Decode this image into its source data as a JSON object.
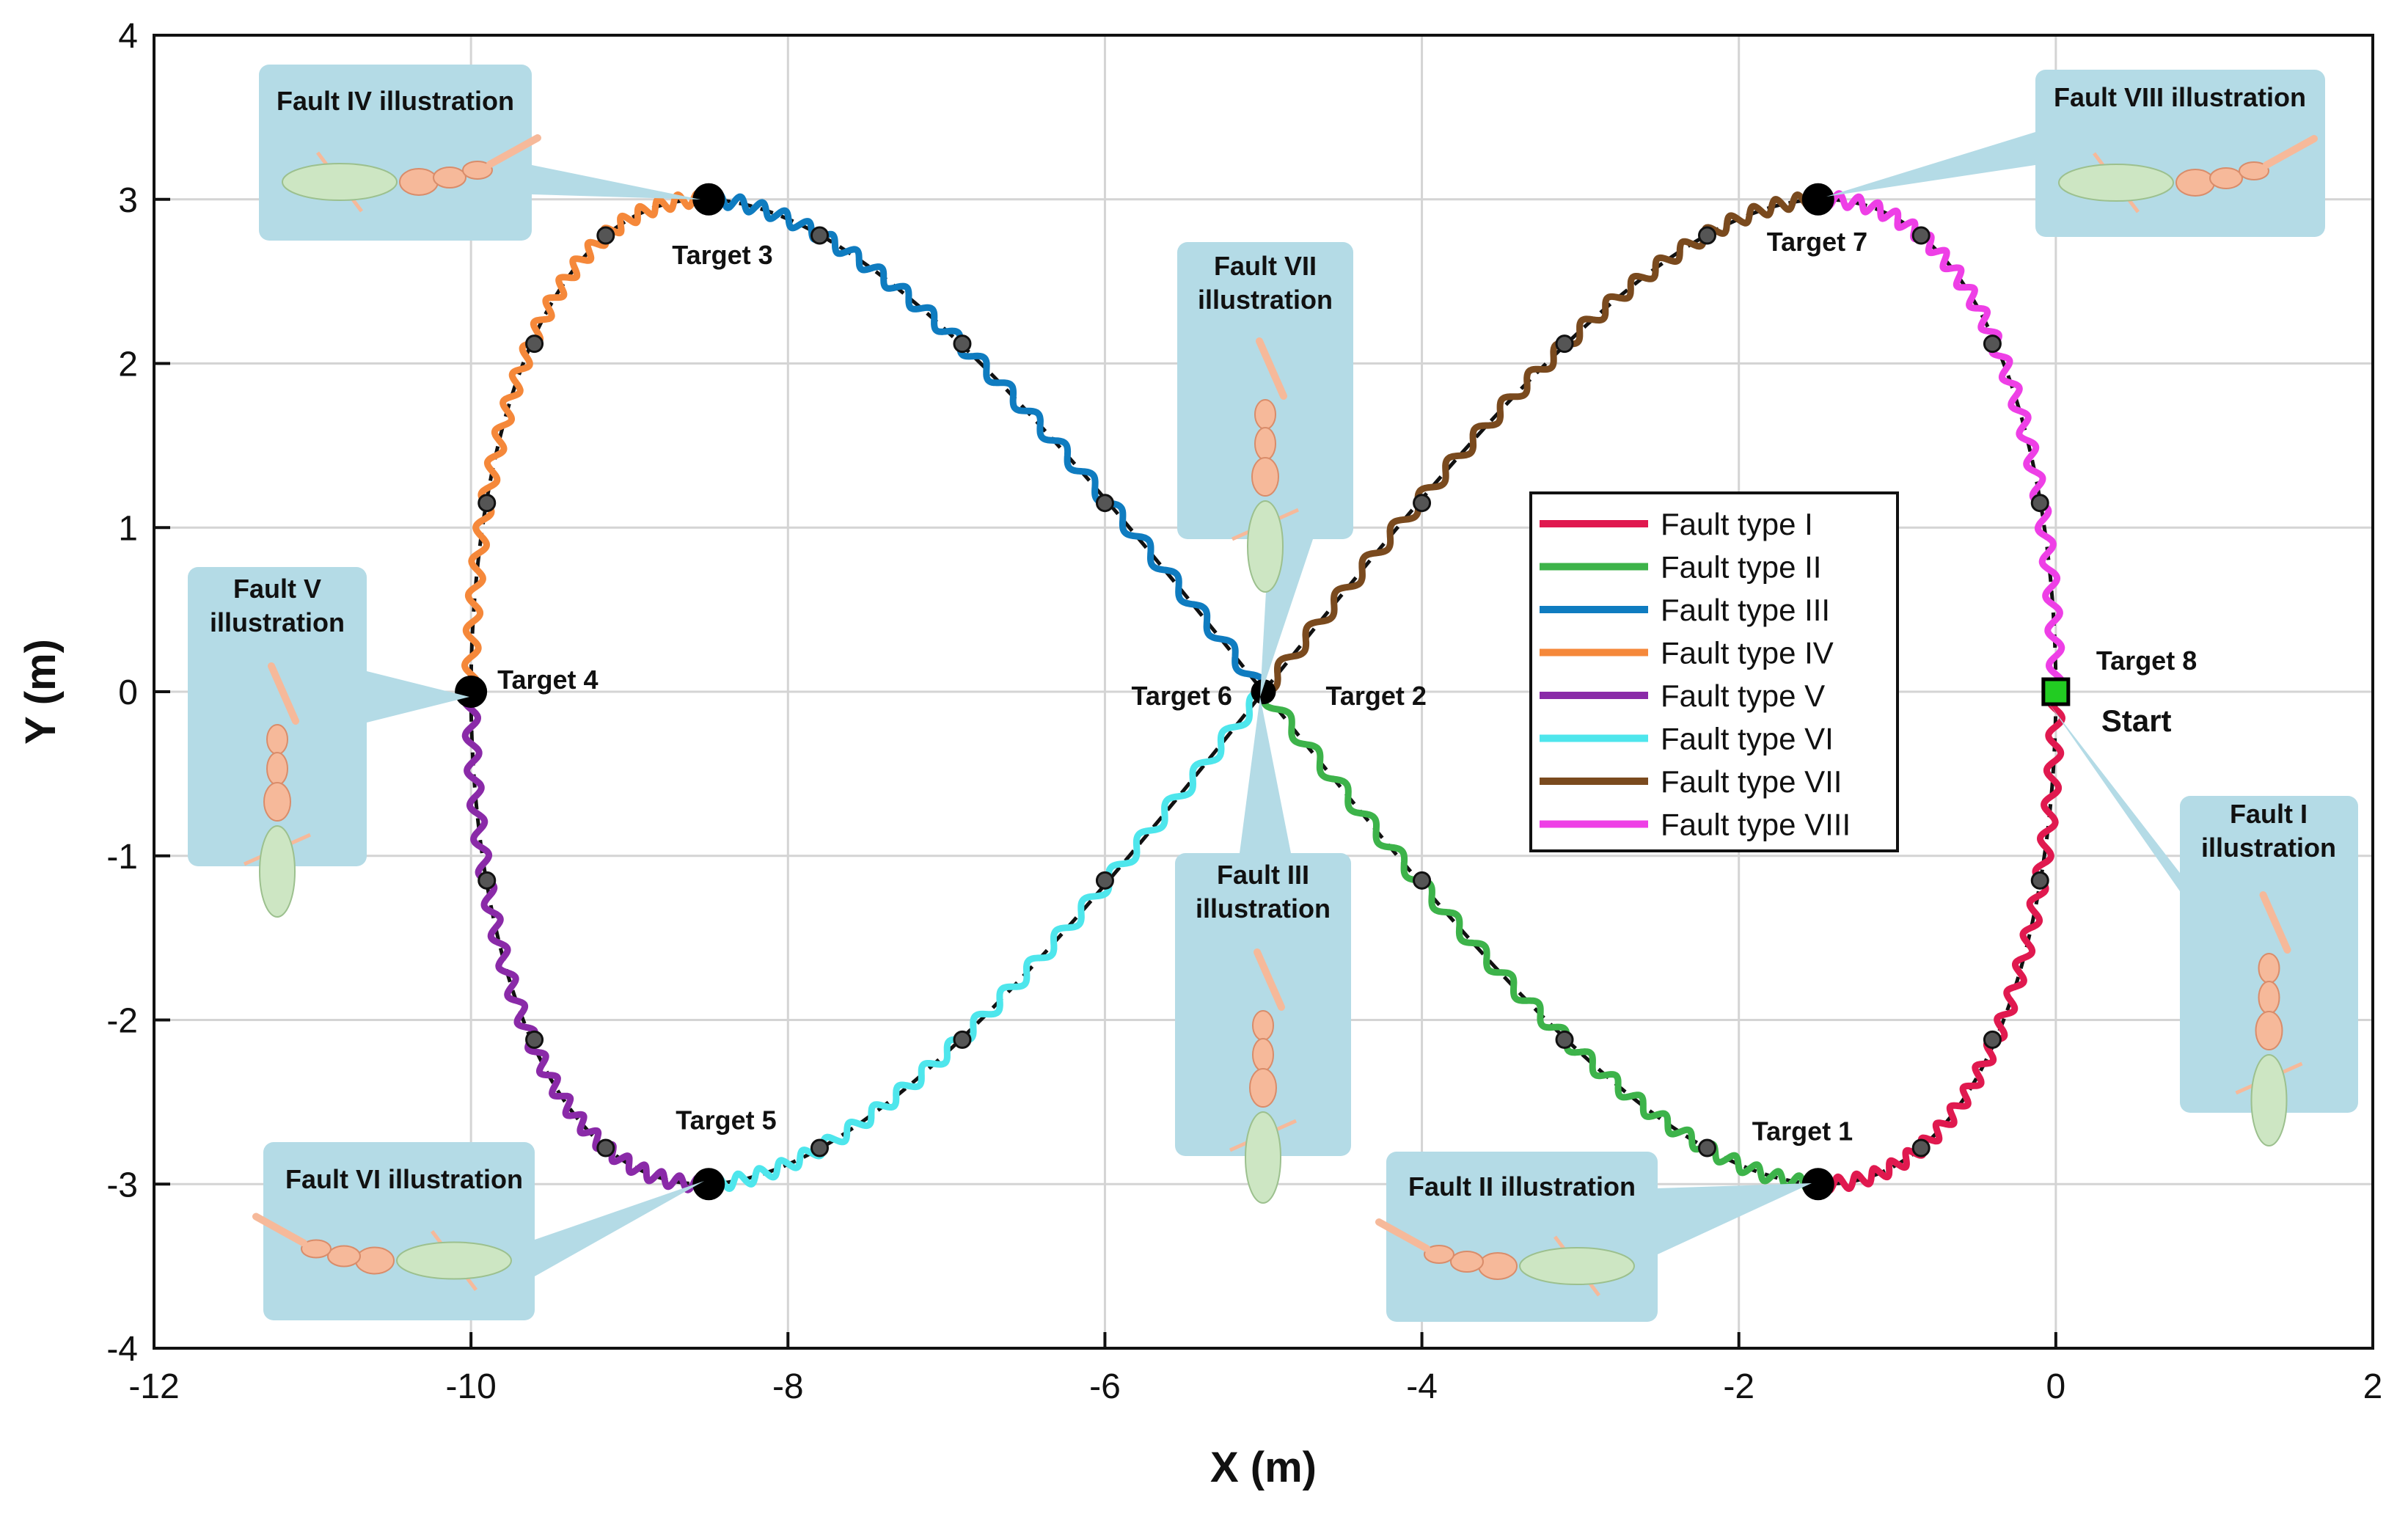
{
  "chart_data": {
    "type": "line",
    "xlabel": "X (m)",
    "ylabel": "Y (m)",
    "xlim": [
      -12,
      2
    ],
    "ylim": [
      -4,
      4
    ],
    "xticks": [
      -12,
      -10,
      -8,
      -6,
      -4,
      -2,
      0,
      2
    ],
    "yticks": [
      -4,
      -3,
      -2,
      -1,
      0,
      1,
      2,
      3,
      4
    ],
    "grid": true,
    "legend_position": "center-right",
    "reference_path": {
      "style": "dashed black",
      "description_shape": "figure-eight, x = -5 + 5*cos(t), y = 3*sin(2t)"
    },
    "series": [
      {
        "name": "Fault type I",
        "color": "#e0194f",
        "from": [
          0,
          0
        ],
        "to": [
          -1.5,
          -3
        ]
      },
      {
        "name": "Fault type II",
        "color": "#3db34a",
        "from": [
          -1.5,
          -3
        ],
        "to": [
          -5,
          0
        ]
      },
      {
        "name": "Fault type III",
        "color": "#0f7cc0",
        "from": [
          -5,
          0
        ],
        "to": [
          -8.5,
          3
        ]
      },
      {
        "name": "Fault type IV",
        "color": "#f5883a",
        "from": [
          -8.5,
          3
        ],
        "to": [
          -10,
          0
        ]
      },
      {
        "name": "Fault type V",
        "color": "#8a2aa8",
        "from": [
          -10,
          0
        ],
        "to": [
          -8.5,
          -3
        ]
      },
      {
        "name": "Fault type VI",
        "color": "#4ee6ec",
        "from": [
          -8.5,
          -3
        ],
        "to": [
          -5,
          0
        ]
      },
      {
        "name": "Fault type VII",
        "color": "#7a4a1e",
        "from": [
          -5,
          0
        ],
        "to": [
          -1.5,
          3
        ]
      },
      {
        "name": "Fault type VIII",
        "color": "#ee3fe6",
        "from": [
          -1.5,
          3
        ],
        "to": [
          0,
          0
        ]
      }
    ],
    "targets": [
      {
        "label": "Target 1",
        "x": -1.5,
        "y": -3
      },
      {
        "label": "Target 2",
        "x": -5,
        "y": 0
      },
      {
        "label": "Target 3",
        "x": -8.5,
        "y": 3
      },
      {
        "label": "Target 4",
        "x": -10,
        "y": 0
      },
      {
        "label": "Target 5",
        "x": -8.5,
        "y": -3
      },
      {
        "label": "Target 6",
        "x": -5,
        "y": 0
      },
      {
        "label": "Target 7",
        "x": -1.5,
        "y": 3
      },
      {
        "label": "Target 8",
        "x": 0,
        "y": 0
      }
    ],
    "start": {
      "label": "Start",
      "x": 0,
      "y": 0
    },
    "waypoints": [
      {
        "x": -0.1,
        "y": -1.15
      },
      {
        "x": -0.4,
        "y": -2.12
      },
      {
        "x": -0.85,
        "y": -2.78
      },
      {
        "x": -2.2,
        "y": -2.78
      },
      {
        "x": -3.1,
        "y": -2.12
      },
      {
        "x": -4.0,
        "y": -1.15
      },
      {
        "x": -6.0,
        "y": 1.15
      },
      {
        "x": -6.9,
        "y": 2.12
      },
      {
        "x": -7.8,
        "y": 2.78
      },
      {
        "x": -9.15,
        "y": 2.78
      },
      {
        "x": -9.6,
        "y": 2.12
      },
      {
        "x": -9.9,
        "y": 1.15
      },
      {
        "x": -9.9,
        "y": -1.15
      },
      {
        "x": -9.6,
        "y": -2.12
      },
      {
        "x": -9.15,
        "y": -2.78
      },
      {
        "x": -7.8,
        "y": -2.78
      },
      {
        "x": -6.9,
        "y": -2.12
      },
      {
        "x": -6.0,
        "y": -1.15
      },
      {
        "x": -4.0,
        "y": 1.15
      },
      {
        "x": -3.1,
        "y": 2.12
      },
      {
        "x": -2.2,
        "y": 2.78
      },
      {
        "x": -0.85,
        "y": 2.78
      },
      {
        "x": -0.4,
        "y": 2.12
      },
      {
        "x": -0.1,
        "y": 1.15
      }
    ],
    "callouts": [
      {
        "text": "Fault I illustration",
        "points_to": "Target 8"
      },
      {
        "text": "Fault II illustration",
        "points_to": "Target 1"
      },
      {
        "text": "Fault III illustration",
        "points_to": "Target 6"
      },
      {
        "text": "Fault IV illustration",
        "points_to": "Target 3"
      },
      {
        "text": "Fault V illustration",
        "points_to": "Target 4"
      },
      {
        "text": "Fault VI illustration",
        "points_to": "Target 5"
      },
      {
        "text": "Fault VII illustration",
        "points_to": "Target 2"
      },
      {
        "text": "Fault VIII illustration",
        "points_to": "Target 7"
      }
    ]
  },
  "colors": {
    "callout_fill": "#b4dbe6",
    "body_green": "#cde6c3",
    "segment_peach": "#f6b99a",
    "start_marker": "#22cc22"
  }
}
